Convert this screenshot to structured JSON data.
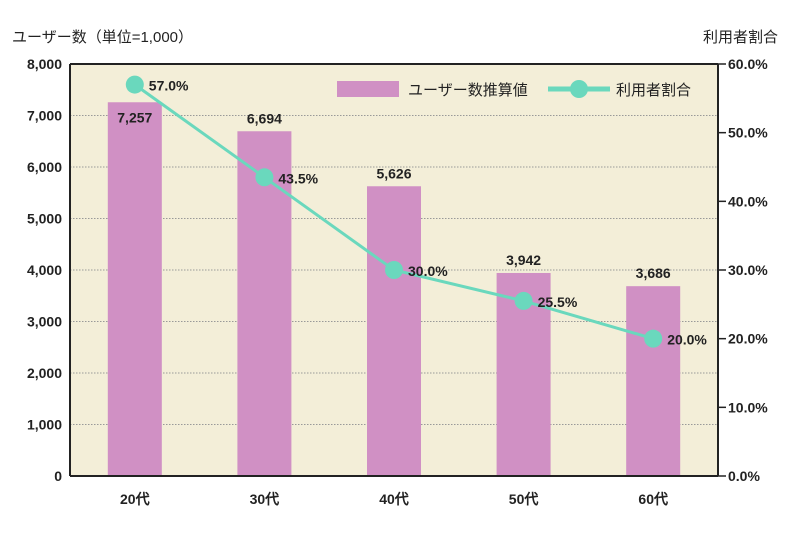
{
  "chart_data": {
    "type": "bar+line",
    "categories": [
      "20代",
      "30代",
      "40代",
      "50代",
      "60代"
    ],
    "series": [
      {
        "name": "ユーザー数推算値",
        "type": "bar",
        "axis": "left",
        "values": [
          7257,
          6694,
          5626,
          3942,
          3686
        ],
        "labels": [
          "7,257",
          "6,694",
          "5,626",
          "3,942",
          "3,686"
        ],
        "color": "#d090c4"
      },
      {
        "name": "利用者割合",
        "type": "line",
        "axis": "right",
        "values": [
          57.0,
          43.5,
          30.0,
          25.5,
          20.0
        ],
        "labels": [
          "57.0%",
          "43.5%",
          "30.0%",
          "25.5%",
          "20.0%"
        ],
        "color": "#6ad8bd"
      }
    ],
    "ylabel": "ユーザー数（単位=1,000）",
    "y2label": "利用者割合",
    "ylim": [
      0,
      8000
    ],
    "y2lim": [
      0,
      60
    ],
    "yticks": [
      "0",
      "1,000",
      "2,000",
      "3,000",
      "4,000",
      "5,000",
      "6,000",
      "7,000",
      "8,000"
    ],
    "y2ticks": [
      "0.0%",
      "10.0%",
      "20.0%",
      "30.0%",
      "40.0%",
      "50.0%",
      "60.0%"
    ],
    "grid": true,
    "legend": "top-right",
    "background": "#f3eed8"
  }
}
